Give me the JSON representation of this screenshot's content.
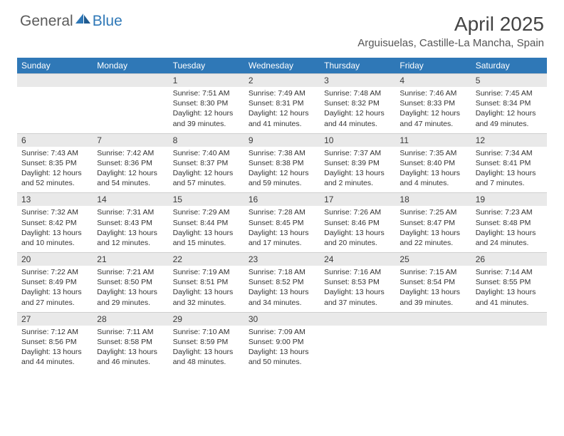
{
  "brand": {
    "part1": "General",
    "part2": "Blue"
  },
  "title": "April 2025",
  "location": "Arguisuelas, Castille-La Mancha, Spain",
  "colors": {
    "header_bg": "#2f78b7",
    "header_text": "#ffffff",
    "daynum_bg": "#e9e9e9",
    "text": "#333333",
    "brand_gray": "#5b5b5b",
    "brand_blue": "#2f78b7"
  },
  "day_names": [
    "Sunday",
    "Monday",
    "Tuesday",
    "Wednesday",
    "Thursday",
    "Friday",
    "Saturday"
  ],
  "weeks": [
    {
      "nums": [
        "",
        "",
        "1",
        "2",
        "3",
        "4",
        "5"
      ],
      "cells": [
        null,
        null,
        {
          "sunrise": "Sunrise: 7:51 AM",
          "sunset": "Sunset: 8:30 PM",
          "dl1": "Daylight: 12 hours",
          "dl2": "and 39 minutes."
        },
        {
          "sunrise": "Sunrise: 7:49 AM",
          "sunset": "Sunset: 8:31 PM",
          "dl1": "Daylight: 12 hours",
          "dl2": "and 41 minutes."
        },
        {
          "sunrise": "Sunrise: 7:48 AM",
          "sunset": "Sunset: 8:32 PM",
          "dl1": "Daylight: 12 hours",
          "dl2": "and 44 minutes."
        },
        {
          "sunrise": "Sunrise: 7:46 AM",
          "sunset": "Sunset: 8:33 PM",
          "dl1": "Daylight: 12 hours",
          "dl2": "and 47 minutes."
        },
        {
          "sunrise": "Sunrise: 7:45 AM",
          "sunset": "Sunset: 8:34 PM",
          "dl1": "Daylight: 12 hours",
          "dl2": "and 49 minutes."
        }
      ]
    },
    {
      "nums": [
        "6",
        "7",
        "8",
        "9",
        "10",
        "11",
        "12"
      ],
      "cells": [
        {
          "sunrise": "Sunrise: 7:43 AM",
          "sunset": "Sunset: 8:35 PM",
          "dl1": "Daylight: 12 hours",
          "dl2": "and 52 minutes."
        },
        {
          "sunrise": "Sunrise: 7:42 AM",
          "sunset": "Sunset: 8:36 PM",
          "dl1": "Daylight: 12 hours",
          "dl2": "and 54 minutes."
        },
        {
          "sunrise": "Sunrise: 7:40 AM",
          "sunset": "Sunset: 8:37 PM",
          "dl1": "Daylight: 12 hours",
          "dl2": "and 57 minutes."
        },
        {
          "sunrise": "Sunrise: 7:38 AM",
          "sunset": "Sunset: 8:38 PM",
          "dl1": "Daylight: 12 hours",
          "dl2": "and 59 minutes."
        },
        {
          "sunrise": "Sunrise: 7:37 AM",
          "sunset": "Sunset: 8:39 PM",
          "dl1": "Daylight: 13 hours",
          "dl2": "and 2 minutes."
        },
        {
          "sunrise": "Sunrise: 7:35 AM",
          "sunset": "Sunset: 8:40 PM",
          "dl1": "Daylight: 13 hours",
          "dl2": "and 4 minutes."
        },
        {
          "sunrise": "Sunrise: 7:34 AM",
          "sunset": "Sunset: 8:41 PM",
          "dl1": "Daylight: 13 hours",
          "dl2": "and 7 minutes."
        }
      ]
    },
    {
      "nums": [
        "13",
        "14",
        "15",
        "16",
        "17",
        "18",
        "19"
      ],
      "cells": [
        {
          "sunrise": "Sunrise: 7:32 AM",
          "sunset": "Sunset: 8:42 PM",
          "dl1": "Daylight: 13 hours",
          "dl2": "and 10 minutes."
        },
        {
          "sunrise": "Sunrise: 7:31 AM",
          "sunset": "Sunset: 8:43 PM",
          "dl1": "Daylight: 13 hours",
          "dl2": "and 12 minutes."
        },
        {
          "sunrise": "Sunrise: 7:29 AM",
          "sunset": "Sunset: 8:44 PM",
          "dl1": "Daylight: 13 hours",
          "dl2": "and 15 minutes."
        },
        {
          "sunrise": "Sunrise: 7:28 AM",
          "sunset": "Sunset: 8:45 PM",
          "dl1": "Daylight: 13 hours",
          "dl2": "and 17 minutes."
        },
        {
          "sunrise": "Sunrise: 7:26 AM",
          "sunset": "Sunset: 8:46 PM",
          "dl1": "Daylight: 13 hours",
          "dl2": "and 20 minutes."
        },
        {
          "sunrise": "Sunrise: 7:25 AM",
          "sunset": "Sunset: 8:47 PM",
          "dl1": "Daylight: 13 hours",
          "dl2": "and 22 minutes."
        },
        {
          "sunrise": "Sunrise: 7:23 AM",
          "sunset": "Sunset: 8:48 PM",
          "dl1": "Daylight: 13 hours",
          "dl2": "and 24 minutes."
        }
      ]
    },
    {
      "nums": [
        "20",
        "21",
        "22",
        "23",
        "24",
        "25",
        "26"
      ],
      "cells": [
        {
          "sunrise": "Sunrise: 7:22 AM",
          "sunset": "Sunset: 8:49 PM",
          "dl1": "Daylight: 13 hours",
          "dl2": "and 27 minutes."
        },
        {
          "sunrise": "Sunrise: 7:21 AM",
          "sunset": "Sunset: 8:50 PM",
          "dl1": "Daylight: 13 hours",
          "dl2": "and 29 minutes."
        },
        {
          "sunrise": "Sunrise: 7:19 AM",
          "sunset": "Sunset: 8:51 PM",
          "dl1": "Daylight: 13 hours",
          "dl2": "and 32 minutes."
        },
        {
          "sunrise": "Sunrise: 7:18 AM",
          "sunset": "Sunset: 8:52 PM",
          "dl1": "Daylight: 13 hours",
          "dl2": "and 34 minutes."
        },
        {
          "sunrise": "Sunrise: 7:16 AM",
          "sunset": "Sunset: 8:53 PM",
          "dl1": "Daylight: 13 hours",
          "dl2": "and 37 minutes."
        },
        {
          "sunrise": "Sunrise: 7:15 AM",
          "sunset": "Sunset: 8:54 PM",
          "dl1": "Daylight: 13 hours",
          "dl2": "and 39 minutes."
        },
        {
          "sunrise": "Sunrise: 7:14 AM",
          "sunset": "Sunset: 8:55 PM",
          "dl1": "Daylight: 13 hours",
          "dl2": "and 41 minutes."
        }
      ]
    },
    {
      "nums": [
        "27",
        "28",
        "29",
        "30",
        "",
        "",
        ""
      ],
      "cells": [
        {
          "sunrise": "Sunrise: 7:12 AM",
          "sunset": "Sunset: 8:56 PM",
          "dl1": "Daylight: 13 hours",
          "dl2": "and 44 minutes."
        },
        {
          "sunrise": "Sunrise: 7:11 AM",
          "sunset": "Sunset: 8:58 PM",
          "dl1": "Daylight: 13 hours",
          "dl2": "and 46 minutes."
        },
        {
          "sunrise": "Sunrise: 7:10 AM",
          "sunset": "Sunset: 8:59 PM",
          "dl1": "Daylight: 13 hours",
          "dl2": "and 48 minutes."
        },
        {
          "sunrise": "Sunrise: 7:09 AM",
          "sunset": "Sunset: 9:00 PM",
          "dl1": "Daylight: 13 hours",
          "dl2": "and 50 minutes."
        },
        null,
        null,
        null
      ]
    }
  ]
}
